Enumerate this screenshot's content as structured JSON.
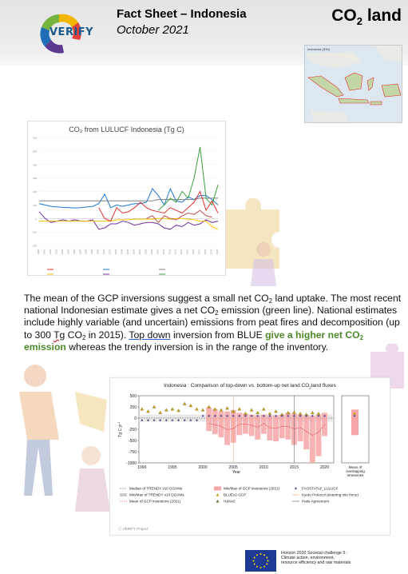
{
  "header": {
    "logo_text": "VERIFY",
    "title_line1": "Fact Sheet – Indonesia",
    "title_line2": "October 2021",
    "topic_main": "CO",
    "topic_sub": "2",
    "topic_tail": " land"
  },
  "map": {
    "title": "Indonesia (IDN)"
  },
  "paragraph": {
    "s1": "The mean of the GCP inversions suggest a small net CO",
    "s1_sub": "2",
    "s2": " land uptake. The most recent national Indonesian estimate gives a net CO",
    "s2_sub": "2",
    "s3": " emission (green line). National estimates include highly variable (and uncertain) emissions from peat fires and decomposition (up to 300 ",
    "tg": "Tg",
    "s4": " CO",
    "s4_sub": "2",
    "s5": " in 2015). ",
    "link": "Top down",
    "s6": " inversion from BLUE ",
    "green": "give a higher net CO",
    "green_sub": "2",
    "green_tail": " emission",
    "s7": " whereas the trendy inversion is in the range of the inventory."
  },
  "chart_data": [
    {
      "type": "line",
      "title": "CO₂ from LULUCF Indonesia (Tg C)",
      "x": [
        1990,
        1991,
        1992,
        1993,
        1994,
        1995,
        1996,
        1997,
        1998,
        1999,
        2000,
        2001,
        2002,
        2003,
        2004,
        2005,
        2006,
        2007,
        2008,
        2009,
        2010,
        2011,
        2012,
        2013,
        2014,
        2015,
        2016,
        2017,
        2018,
        2019,
        2020
      ],
      "ylim": [
        -200,
        600
      ],
      "yticks": [
        -200,
        -100,
        0,
        100,
        200,
        300,
        400,
        500,
        600
      ],
      "series": [
        {
          "color": "#1f77d0",
          "values": [
            110,
            100,
            90,
            85,
            82,
            80,
            78,
            80,
            85,
            90,
            110,
            180,
            80,
            100,
            90,
            100,
            110,
            110,
            120,
            220,
            170,
            100,
            220,
            130,
            120,
            160,
            140,
            170,
            170,
            140,
            100
          ]
        },
        {
          "color": "#7f7f7f",
          "values": [
            130,
            130,
            130,
            130,
            130,
            130,
            130,
            130,
            130,
            130,
            130,
            130,
            130,
            130,
            130,
            130,
            130,
            130,
            130,
            130,
            140,
            140,
            140,
            140,
            140,
            140,
            140,
            150,
            150,
            150,
            150
          ]
        },
        {
          "color": "#3aa040",
          "values": [
            null,
            null,
            null,
            null,
            null,
            null,
            null,
            null,
            null,
            null,
            null,
            null,
            null,
            null,
            null,
            null,
            null,
            null,
            null,
            null,
            60,
            100,
            150,
            120,
            200,
            150,
            300,
            530,
            150,
            100,
            250
          ]
        },
        {
          "color": "#7030a0",
          "values": [
            50,
            0,
            -30,
            -20,
            -10,
            -20,
            -10,
            -20,
            -20,
            -10,
            -80,
            -70,
            -40,
            -40,
            -20,
            -30,
            -50,
            -40,
            -30,
            -30,
            -40,
            -70,
            -80,
            -50,
            -60,
            -30,
            -50,
            -40,
            -10,
            -30,
            -20
          ]
        },
        {
          "color": "#ffc000",
          "values": [
            -20,
            -20,
            -20,
            -20,
            -20,
            -20,
            -20,
            -20,
            -20,
            -20,
            -20,
            -20,
            -20,
            -10,
            -10,
            -10,
            -5,
            -5,
            -5,
            -5,
            0,
            0,
            -5,
            0,
            0,
            -5,
            -10,
            -20,
            -20,
            -60,
            -80
          ]
        },
        {
          "color": "#e03030",
          "values": [
            null,
            null,
            null,
            null,
            null,
            null,
            null,
            null,
            null,
            null,
            80,
            0,
            -20,
            80,
            40,
            50,
            80,
            120,
            80,
            60,
            50,
            40,
            80,
            60,
            40,
            80,
            120,
            200,
            60,
            130,
            40
          ]
        },
        {
          "color": "#c0504d",
          "values": [
            null,
            null,
            null,
            null,
            null,
            null,
            null,
            null,
            null,
            null,
            null,
            null,
            null,
            null,
            null,
            null,
            null,
            null,
            0,
            20,
            -30,
            20,
            0,
            -10,
            20,
            40,
            30,
            60,
            20,
            10,
            null
          ]
        }
      ]
    },
    {
      "type": "bar",
      "title": "Indonesia : Comparison of top-down vs. bottom-up net land CO",
      "title_sub": "2",
      "title_tail": "land fluxes",
      "ylabel": "Tg C yr",
      "ylabel_sup": "-1",
      "xlabel": "Year",
      "ylim": [
        -1000,
        500
      ],
      "yticks": [
        500,
        250,
        0,
        -250,
        -500,
        -750,
        -1000
      ],
      "xticks": [
        1990,
        1995,
        2000,
        2005,
        2010,
        2015,
        2020
      ],
      "mean_label": [
        "Mean of",
        "overlapping",
        "timeseries"
      ],
      "gcp_boxes": [
        {
          "year": 2001,
          "min": -290,
          "max": 240
        },
        {
          "year": 2002,
          "min": -360,
          "max": 200
        },
        {
          "year": 2003,
          "min": -430,
          "max": 150
        },
        {
          "year": 2004,
          "min": -600,
          "max": 150
        },
        {
          "year": 2005,
          "min": -550,
          "max": 180
        },
        {
          "year": 2006,
          "min": -380,
          "max": 120
        },
        {
          "year": 2007,
          "min": -350,
          "max": 100
        },
        {
          "year": 2008,
          "min": -400,
          "max": 80
        },
        {
          "year": 2009,
          "min": -480,
          "max": 60
        },
        {
          "year": 2010,
          "min": -350,
          "max": 80
        },
        {
          "year": 2011,
          "min": -500,
          "max": 50
        },
        {
          "year": 2012,
          "min": -520,
          "max": 60
        },
        {
          "year": 2013,
          "min": -450,
          "max": 80
        },
        {
          "year": 2014,
          "min": -480,
          "max": 120
        },
        {
          "year": 2015,
          "min": -600,
          "max": 100
        },
        {
          "year": 2016,
          "min": -520,
          "max": 80
        },
        {
          "year": 2017,
          "min": -700,
          "max": 60
        },
        {
          "year": 2018,
          "min": -1000,
          "max": 50
        },
        {
          "year": 2019,
          "min": -850,
          "max": 80
        },
        {
          "year": 2020,
          "min": -400,
          "max": 120
        }
      ],
      "gcp_mean": [
        -120,
        -150,
        -180,
        -260,
        -230,
        -140,
        -130,
        -160,
        -200,
        -120,
        -220,
        -230,
        -180,
        -190,
        -240,
        -210,
        -300,
        -380,
        -320,
        -140
      ],
      "blue_triangles": [
        {
          "year": 1990,
          "v": 200
        },
        {
          "year": 1991,
          "v": 150
        },
        {
          "year": 1992,
          "v": 250
        },
        {
          "year": 1993,
          "v": 120
        },
        {
          "year": 1994,
          "v": 180
        },
        {
          "year": 1995,
          "v": 200
        },
        {
          "year": 1996,
          "v": 170
        },
        {
          "year": 1997,
          "v": 320
        },
        {
          "year": 1998,
          "v": 280
        },
        {
          "year": 1999,
          "v": 200
        },
        {
          "year": 2000,
          "v": 180
        },
        {
          "year": 2001,
          "v": 250
        },
        {
          "year": 2002,
          "v": 200
        },
        {
          "year": 2003,
          "v": 180
        },
        {
          "year": 2004,
          "v": 220
        },
        {
          "year": 2005,
          "v": 150
        },
        {
          "year": 2006,
          "v": 200
        },
        {
          "year": 2007,
          "v": 100
        },
        {
          "year": 2008,
          "v": 180
        },
        {
          "year": 2009,
          "v": 120
        },
        {
          "year": 2010,
          "v": 200
        },
        {
          "year": 2011,
          "v": 100
        },
        {
          "year": 2012,
          "v": 150
        },
        {
          "year": 2013,
          "v": 80
        },
        {
          "year": 2014,
          "v": 120
        },
        {
          "year": 2015,
          "v": 130
        },
        {
          "year": 2016,
          "v": 100
        },
        {
          "year": 2017,
          "v": 80
        },
        {
          "year": 2018,
          "v": 120
        },
        {
          "year": 2019,
          "v": 100
        }
      ],
      "faostat_diamonds": [
        {
          "year": 1990,
          "v": -50
        },
        {
          "year": 1991,
          "v": -50
        },
        {
          "year": 1992,
          "v": -50
        },
        {
          "year": 1993,
          "v": -50
        },
        {
          "year": 1994,
          "v": -50
        },
        {
          "year": 1995,
          "v": -50
        },
        {
          "year": 1996,
          "v": -50
        },
        {
          "year": 1997,
          "v": -50
        },
        {
          "year": 1998,
          "v": -50
        },
        {
          "year": 1999,
          "v": -50
        },
        {
          "year": 2000,
          "v": 50
        },
        {
          "year": 2001,
          "v": 50
        },
        {
          "year": 2002,
          "v": 50
        },
        {
          "year": 2003,
          "v": 50
        },
        {
          "year": 2004,
          "v": 50
        },
        {
          "year": 2005,
          "v": 50
        },
        {
          "year": 2006,
          "v": 50
        },
        {
          "year": 2007,
          "v": 50
        },
        {
          "year": 2008,
          "v": 50
        },
        {
          "year": 2009,
          "v": 50
        },
        {
          "year": 2010,
          "v": 50
        },
        {
          "year": 2011,
          "v": 50
        },
        {
          "year": 2012,
          "v": 50
        },
        {
          "year": 2013,
          "v": 50
        },
        {
          "year": 2014,
          "v": 50
        },
        {
          "year": 2015,
          "v": 50
        },
        {
          "year": 2016,
          "v": 50
        },
        {
          "year": 2017,
          "v": 50
        },
        {
          "year": 2018,
          "v": 50
        },
        {
          "year": 2019,
          "v": 50
        },
        {
          "year": 2020,
          "v": 50
        }
      ],
      "trendy_min": -80,
      "trendy_max": 80,
      "mean_box": {
        "min": -380,
        "max": 190
      },
      "vlines": [
        2005,
        2015
      ],
      "legend": [
        [
          "Median of TRENDY v10 DGVMs",
          "Min/Max of TRENDY v10 DGVMs",
          "Mean of GCP inversions (2021)"
        ],
        [
          "Min/Max of GCP inversions (2021)",
          "BLUEv2-GCP",
          "H&Nv2"
        ],
        [
          "FAOSTATv2_LULUCF",
          "Kyoto Protocol (entering into force)",
          "Paris Agreement"
        ]
      ],
      "credit": "VERIFY Project"
    }
  ],
  "footer": {
    "eu_line1": "Horizon 2020 Societal challenge 5 :",
    "eu_line2": "Climate action, environment,",
    "eu_line3": "resource efficiency and raw materials"
  }
}
